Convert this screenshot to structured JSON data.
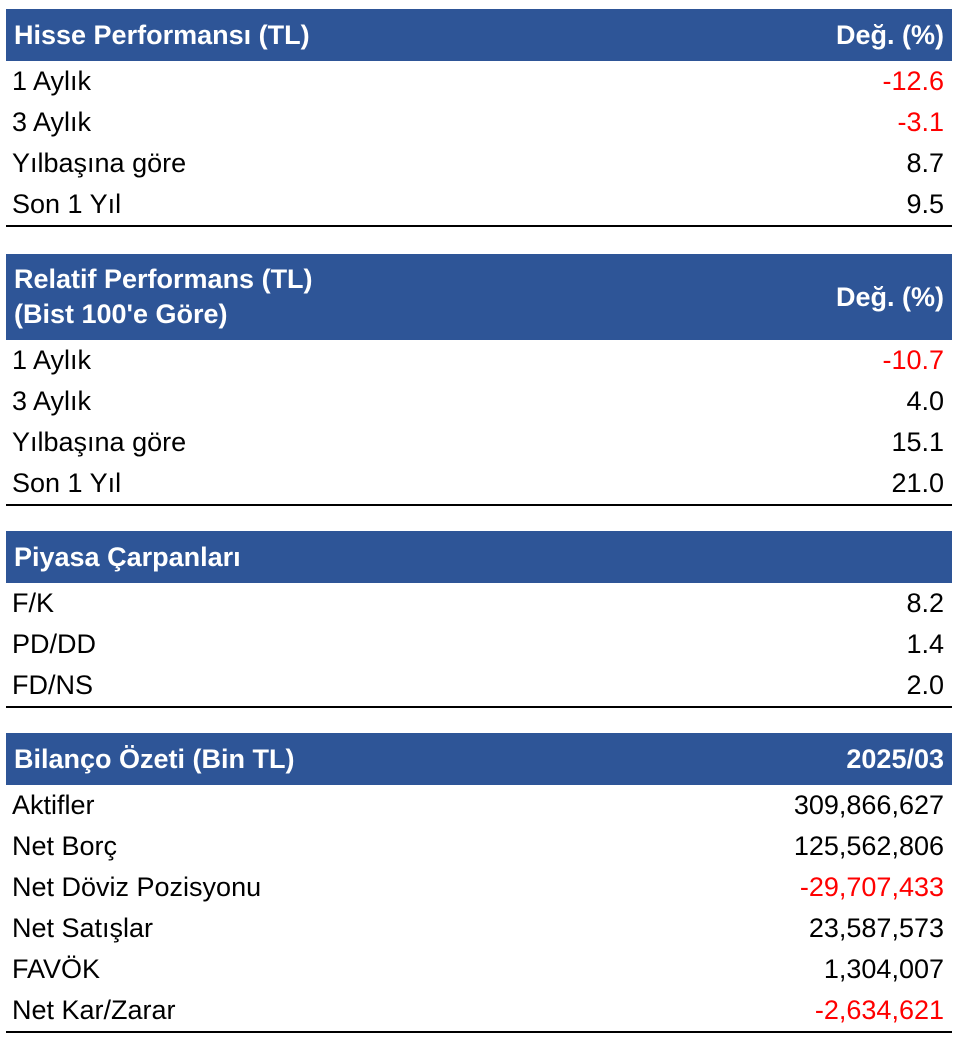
{
  "colors": {
    "header_bg": "#2e5597",
    "header_text": "#ffffff",
    "negative": "#ff0000"
  },
  "hisse": {
    "title": "Hisse Performansı (TL)",
    "column": "Değ. (%)",
    "rows": [
      {
        "label": "1 Aylık",
        "value": "-12.6"
      },
      {
        "label": "3 Aylık",
        "value": "-3.1"
      },
      {
        "label": "Yılbaşına göre",
        "value": "8.7"
      },
      {
        "label": "Son 1 Yıl",
        "value": "9.5"
      }
    ]
  },
  "relatif": {
    "title_line1": "Relatif Performans (TL)",
    "title_line2": "(Bist 100'e Göre)",
    "column": "Değ. (%)",
    "rows": [
      {
        "label": "1 Aylık",
        "value": "-10.7"
      },
      {
        "label": "3 Aylık",
        "value": "4.0"
      },
      {
        "label": "Yılbaşına göre",
        "value": "15.1"
      },
      {
        "label": "Son 1 Yıl",
        "value": "21.0"
      }
    ]
  },
  "carpan": {
    "title": "Piyasa Çarpanları",
    "rows": [
      {
        "label": "F/K",
        "value": "8.2"
      },
      {
        "label": "PD/DD",
        "value": "1.4"
      },
      {
        "label": "FD/NS",
        "value": "2.0"
      }
    ]
  },
  "bilanco": {
    "title": "Bilanço Özeti (Bin TL)",
    "column": "2025/03",
    "rows": [
      {
        "label": "Aktifler",
        "value": "309,866,627"
      },
      {
        "label": "Net Borç",
        "value": "125,562,806"
      },
      {
        "label": "Net Döviz Pozisyonu",
        "value": "-29,707,433"
      },
      {
        "label": "Net Satışlar",
        "value": "23,587,573"
      },
      {
        "label": "FAVÖK",
        "value": "1,304,007"
      },
      {
        "label": "Net Kar/Zarar",
        "value": "-2,634,621"
      }
    ]
  }
}
